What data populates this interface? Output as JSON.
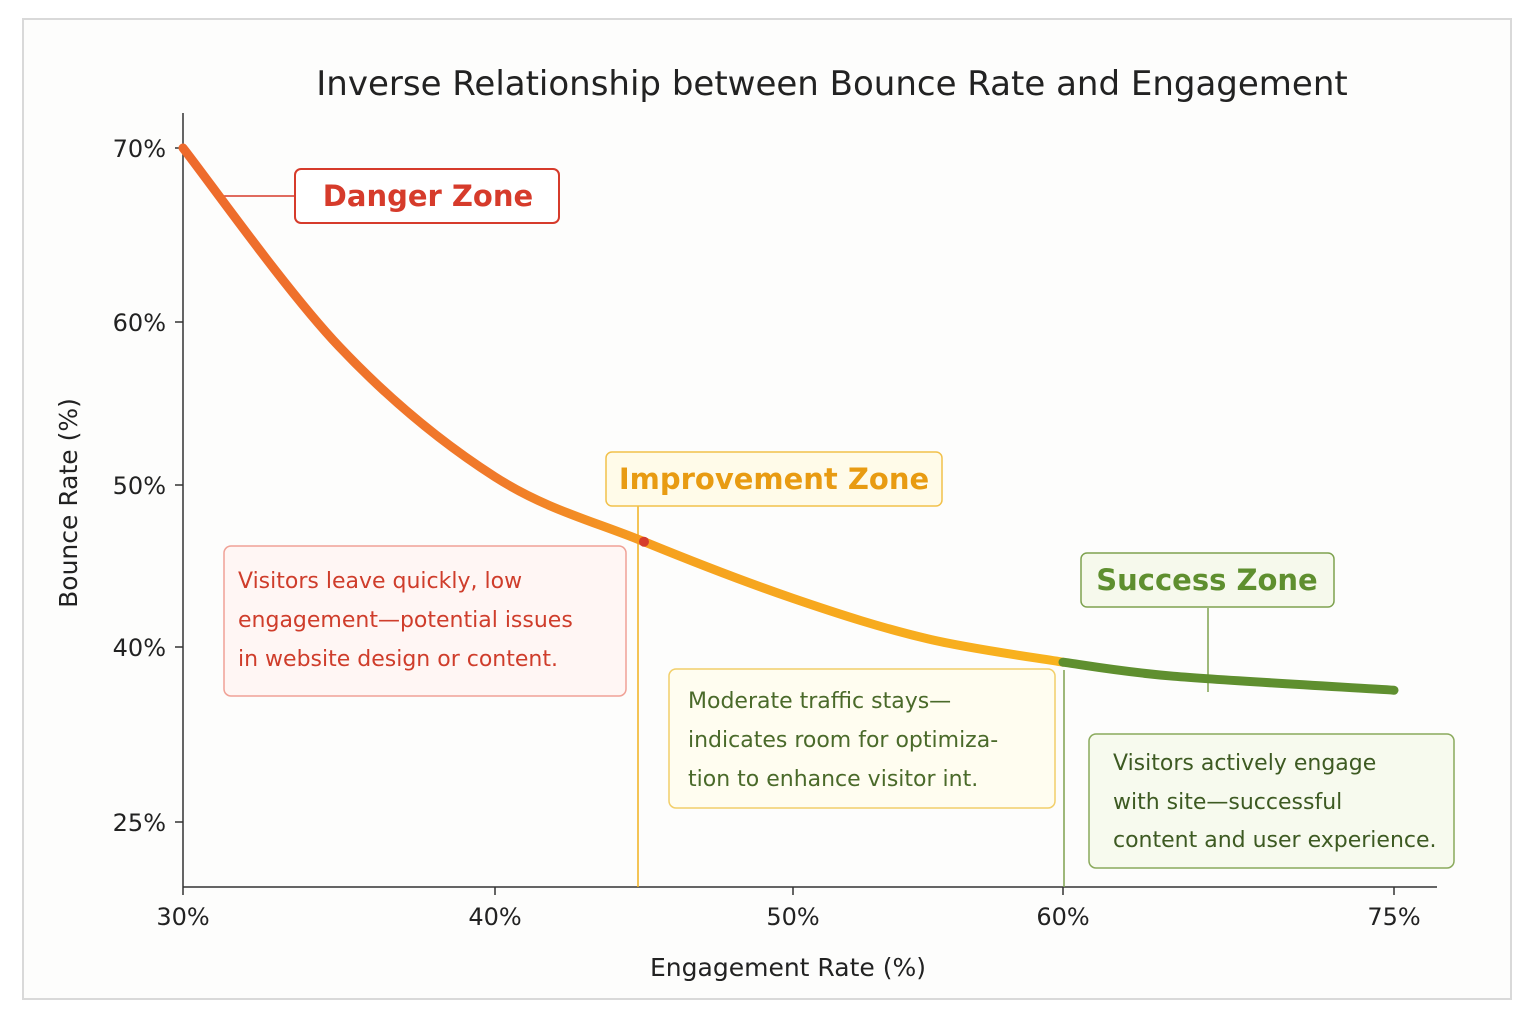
{
  "chart_data": {
    "type": "line",
    "title": "Inverse Relationship between Bounce Rate and Engagement",
    "xlabel": "Engagement Rate (%)",
    "ylabel": "Bounce Rate (%)",
    "x_ticks": [
      "30%",
      "40%",
      "50%",
      "60%",
      "75%"
    ],
    "y_ticks": [
      "25%",
      "40%",
      "50%",
      "60%",
      "70%"
    ],
    "grid": false,
    "series": [
      {
        "values": [
          {
            "x": "30%",
            "y": 70
          },
          {
            "x": "35%",
            "y": 58.5
          },
          {
            "x": "40%",
            "y": 50.5
          },
          {
            "x": "45%",
            "y": 46.5
          },
          {
            "x": "50%",
            "y": 43
          },
          {
            "x": "55%",
            "y": 40.5
          },
          {
            "x": "60%",
            "y": 38.7
          },
          {
            "x": "65%",
            "y": 37.5
          },
          {
            "x": "75%",
            "y": 36.3
          }
        ]
      }
    ],
    "zone_colors": {
      "danger": "#ee6a2c",
      "improvement": "#f6ac1f",
      "success": "#5f8f2f"
    },
    "annotations": [
      {
        "id": "danger",
        "label": "Danger Zone",
        "text": [
          "Visitors leave quickly, low",
          "engagement—potential issues",
          "in website design or content."
        ],
        "color": "#d63b2b"
      },
      {
        "id": "improvement",
        "label": "Improvement Zone",
        "text": [
          "Moderate traffic stays—",
          "indicates room for optimiza-",
          "tion to enhance visitor int."
        ],
        "color": "#e89b12"
      },
      {
        "id": "success",
        "label": "Success Zone",
        "text": [
          "Visitors actively engage",
          "with site—successful",
          "content and user experience."
        ],
        "color": "#5f8f2f"
      }
    ]
  }
}
